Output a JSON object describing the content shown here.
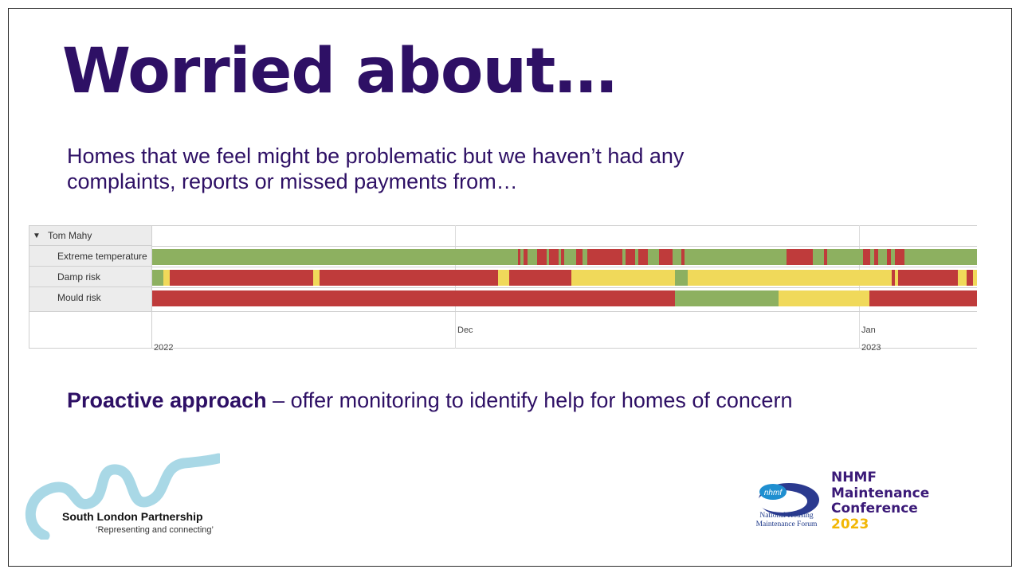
{
  "title": "Worried about…",
  "subtitle_line1": "Homes that we feel might be problematic but we haven’t had any",
  "subtitle_line2": "complaints, reports or missed payments from…",
  "timeline": {
    "group_label": "Tom Mahy",
    "rows": [
      {
        "label": "Extreme temperature"
      },
      {
        "label": "Damp risk"
      },
      {
        "label": "Mould risk"
      }
    ],
    "month_ticks": [
      "Dec",
      "Jan"
    ],
    "year_ticks": [
      "2022",
      "2023"
    ],
    "status_colors": {
      "green": "#8db060",
      "yellow": "#f0d95a",
      "red": "#bf3b3b"
    }
  },
  "emphasis_bold": "Proactive approach",
  "emphasis_rest": " – offer monitoring to identify help for homes of concern",
  "logos": {
    "slp_name": "South London Partnership",
    "slp_tagline": "‘Representing and connecting’",
    "nhmf_badge": "nhmf",
    "nhmf_org_line1": "National Housing",
    "nhmf_org_line2": "Maintenance Forum",
    "conf_line1": "NHMF",
    "conf_line2": "Maintenance",
    "conf_line3": "Conference",
    "conf_year": "2023"
  }
}
